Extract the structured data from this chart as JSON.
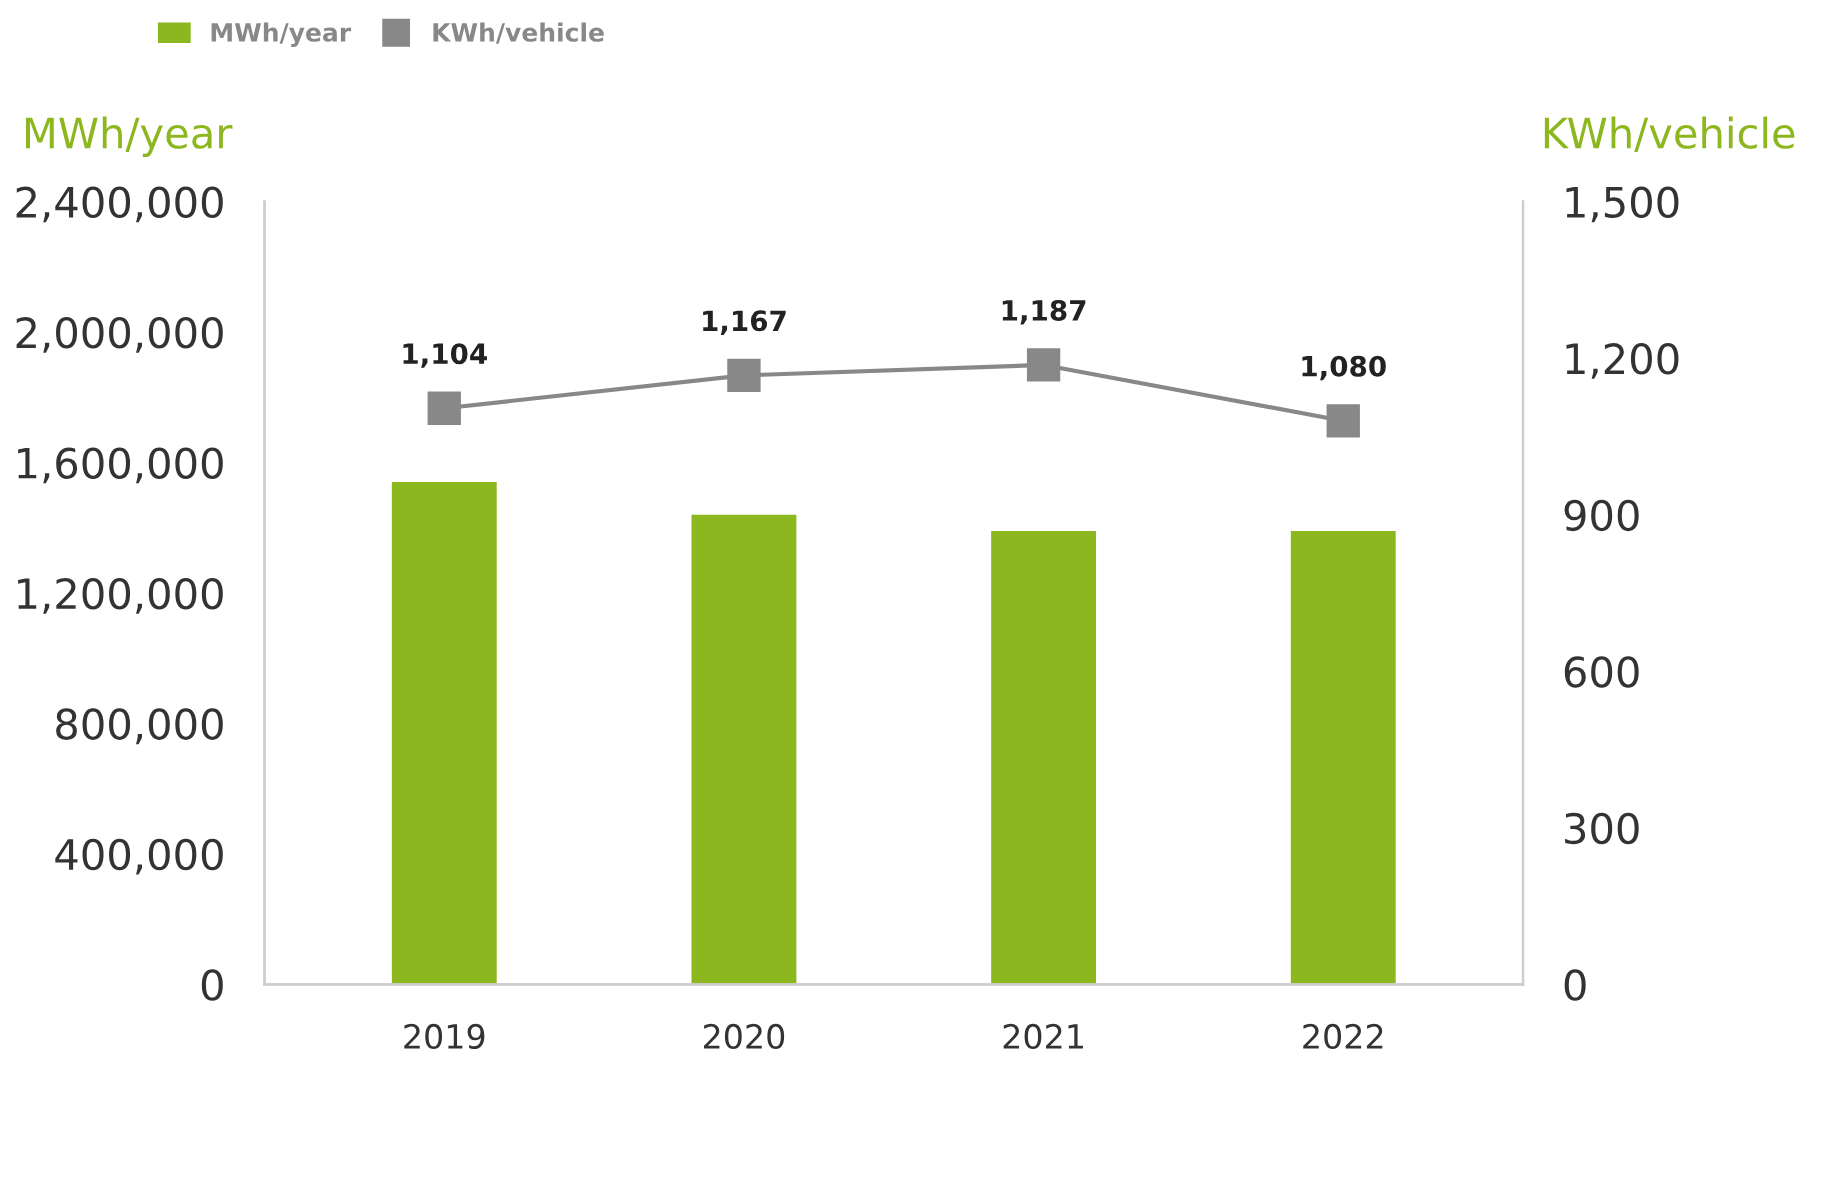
{
  "chart_data": {
    "type": "bar",
    "categories": [
      "2019",
      "2020",
      "2021",
      "2022"
    ],
    "ylabel": "MWh/year",
    "y2label": "KWh/vehicle",
    "series": [
      {
        "name": "MWh/year",
        "color": "#8db71f",
        "values": [
          1540000,
          1440000,
          1390000,
          1390000
        ]
      },
      {
        "name": "KWh/vehicle",
        "type": "line",
        "axis": "y2",
        "color": "#888888",
        "marker": "square",
        "values": [
          1104,
          1167,
          1187,
          1080
        ],
        "value_labels": [
          "1,104",
          "1,167",
          "1,187",
          "1,080"
        ]
      }
    ],
    "ylim": [
      0,
      2400000
    ],
    "yticks": [
      {
        "value": 0,
        "label": "0"
      },
      {
        "value": 400000,
        "label": "400,000"
      },
      {
        "value": 800000,
        "label": "800,000"
      },
      {
        "value": 1200000,
        "label": "1,200,000"
      },
      {
        "value": 1600000,
        "label": "1,600,000"
      },
      {
        "value": 2000000,
        "label": "2,000,000"
      },
      {
        "value": 2400000,
        "label": "2,400,000"
      }
    ],
    "y2lim": [
      0,
      1500
    ],
    "y2ticks": [
      0,
      300,
      600,
      900,
      {
        "value": 1200,
        "label": "1,200"
      },
      {
        "value": 1500,
        "label": "1,500"
      }
    ],
    "legend": "top left",
    "grid": false
  }
}
